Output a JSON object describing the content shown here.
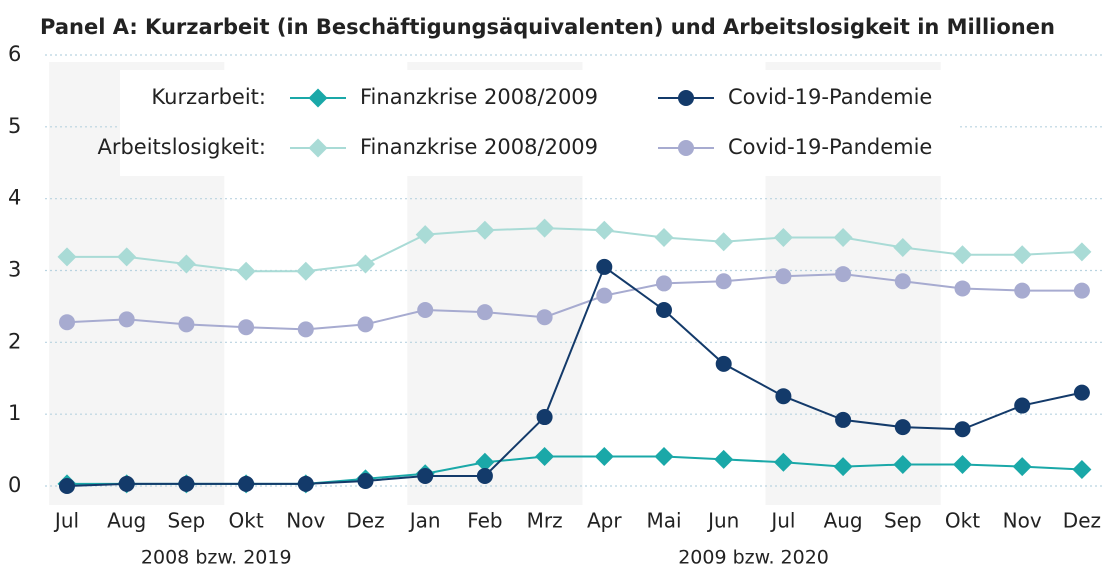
{
  "chart_data": {
    "type": "line",
    "title": "Panel A: Kurzarbeit (in Beschäftigungsäquivalenten) und Arbeitslosigkeit in Millionen",
    "categories": [
      "Jul",
      "Aug",
      "Sep",
      "Okt",
      "Nov",
      "Dez",
      "Jan",
      "Feb",
      "Mrz",
      "Apr",
      "Mai",
      "Jun",
      "Jul",
      "Aug",
      "Sep",
      "Okt",
      "Nov",
      "Dez"
    ],
    "x_group_labels": [
      "2008 bzw. 2019",
      "2009 bzw. 2020"
    ],
    "legend_groups": [
      "Kurzarbeit:",
      "Arbeitslosigkeit:"
    ],
    "series": [
      {
        "name": "Finanzkrise 2008/2009",
        "color": "#1aa8a8",
        "marker": "diamond",
        "values": [
          0.03,
          0.03,
          0.03,
          0.03,
          0.03,
          0.1,
          0.17,
          0.33,
          0.41,
          0.41,
          0.41,
          0.37,
          0.33,
          0.27,
          0.3,
          0.3,
          0.27,
          0.23
        ]
      },
      {
        "name": "Covid-19-Pandemie",
        "color": "#133a6a",
        "marker": "circle",
        "values": [
          0,
          0.03,
          0.03,
          0.03,
          0.03,
          0.07,
          0.14,
          0.14,
          0.96,
          3.05,
          2.45,
          1.7,
          1.25,
          0.92,
          0.82,
          0.79,
          1.12,
          1.3
        ]
      },
      {
        "name": "Finanzkrise 2008/2009",
        "color": "#a9dbd6",
        "marker": "diamond",
        "values": [
          3.19,
          3.19,
          3.09,
          2.99,
          2.99,
          3.09,
          3.5,
          3.56,
          3.59,
          3.56,
          3.46,
          3.4,
          3.46,
          3.46,
          3.32,
          3.22,
          3.22,
          3.26
        ]
      },
      {
        "name": "Covid-19-Pandemie",
        "color": "#a7abd0",
        "marker": "circle",
        "values": [
          2.28,
          2.32,
          2.25,
          2.21,
          2.18,
          2.25,
          2.45,
          2.42,
          2.35,
          2.65,
          2.82,
          2.85,
          2.92,
          2.95,
          2.85,
          2.75,
          2.72,
          2.72
        ]
      }
    ],
    "ylim": [
      0,
      6
    ],
    "yticks": [
      0,
      1,
      2,
      3,
      4,
      5,
      6
    ],
    "grid": true
  }
}
